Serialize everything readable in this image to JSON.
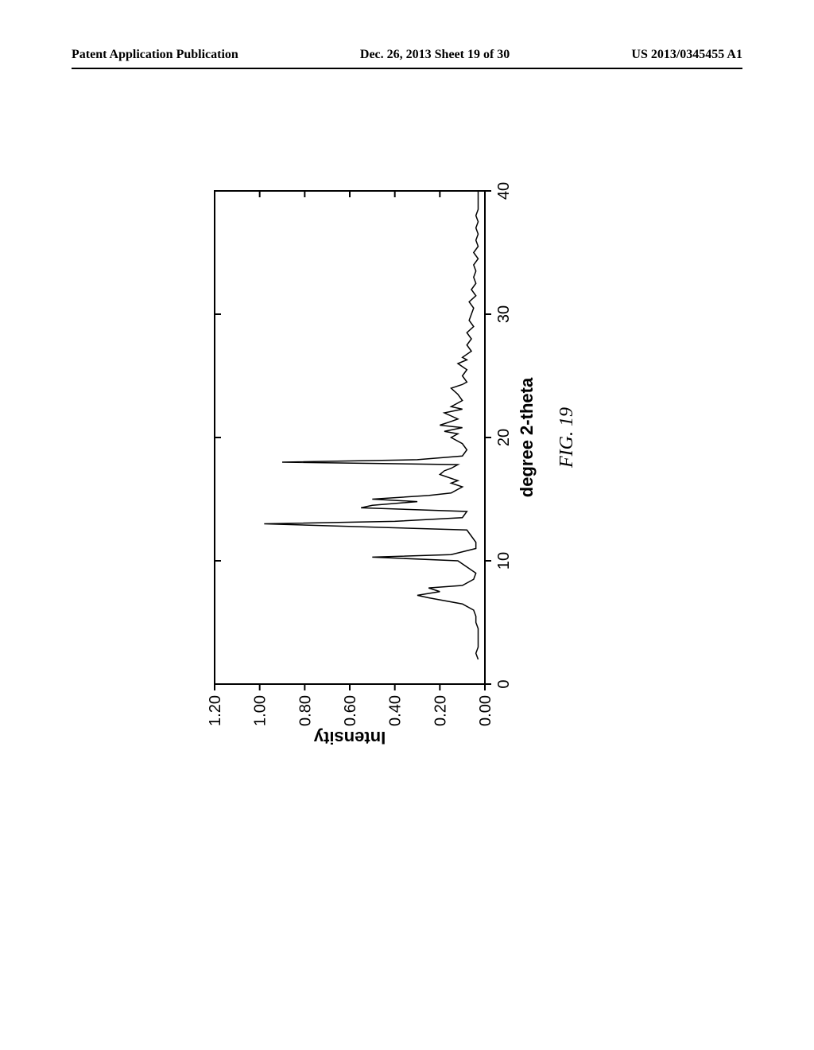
{
  "header": {
    "left": "Patent Application Publication",
    "center": "Dec. 26, 2013  Sheet 19 of 30",
    "right": "US 2013/0345455 A1"
  },
  "figure": {
    "caption": "FIG. 19",
    "caption_fontsize": 24,
    "chart": {
      "type": "line",
      "xlabel": "degree 2-theta",
      "ylabel": "Intensity",
      "label_fontsize": 22,
      "tick_fontsize": 20,
      "xlim": [
        0,
        40
      ],
      "ylim": [
        0.0,
        1.2
      ],
      "xticks": [
        0,
        10,
        20,
        30,
        40
      ],
      "yticks": [
        "0.00",
        "0.20",
        "0.40",
        "0.60",
        "0.80",
        "1.00",
        "1.20"
      ],
      "line_color": "#000000",
      "line_width": 1.5,
      "background_color": "#ffffff",
      "border_color": "#000000",
      "border_width": 2,
      "data_points": [
        [
          2.0,
          0.03
        ],
        [
          2.5,
          0.04
        ],
        [
          3.0,
          0.03
        ],
        [
          3.5,
          0.03
        ],
        [
          4.0,
          0.03
        ],
        [
          4.5,
          0.03
        ],
        [
          5.0,
          0.04
        ],
        [
          5.5,
          0.04
        ],
        [
          6.0,
          0.05
        ],
        [
          6.5,
          0.1
        ],
        [
          7.0,
          0.25
        ],
        [
          7.2,
          0.3
        ],
        [
          7.5,
          0.2
        ],
        [
          7.8,
          0.25
        ],
        [
          8.0,
          0.1
        ],
        [
          8.5,
          0.05
        ],
        [
          9.0,
          0.04
        ],
        [
          9.5,
          0.08
        ],
        [
          10.0,
          0.12
        ],
        [
          10.3,
          0.5
        ],
        [
          10.5,
          0.15
        ],
        [
          11.0,
          0.04
        ],
        [
          11.5,
          0.04
        ],
        [
          12.0,
          0.06
        ],
        [
          12.5,
          0.08
        ],
        [
          13.0,
          0.98
        ],
        [
          13.2,
          0.4
        ],
        [
          13.5,
          0.1
        ],
        [
          14.0,
          0.08
        ],
        [
          14.3,
          0.55
        ],
        [
          14.5,
          0.5
        ],
        [
          14.8,
          0.3
        ],
        [
          15.0,
          0.5
        ],
        [
          15.3,
          0.25
        ],
        [
          15.5,
          0.15
        ],
        [
          16.0,
          0.1
        ],
        [
          16.3,
          0.15
        ],
        [
          16.5,
          0.12
        ],
        [
          17.0,
          0.2
        ],
        [
          17.3,
          0.18
        ],
        [
          17.5,
          0.15
        ],
        [
          17.8,
          0.12
        ],
        [
          18.0,
          0.9
        ],
        [
          18.2,
          0.3
        ],
        [
          18.5,
          0.1
        ],
        [
          19.0,
          0.08
        ],
        [
          19.5,
          0.1
        ],
        [
          20.0,
          0.15
        ],
        [
          20.3,
          0.12
        ],
        [
          20.5,
          0.18
        ],
        [
          20.8,
          0.1
        ],
        [
          21.0,
          0.2
        ],
        [
          21.3,
          0.15
        ],
        [
          21.5,
          0.12
        ],
        [
          22.0,
          0.18
        ],
        [
          22.3,
          0.1
        ],
        [
          22.5,
          0.15
        ],
        [
          23.0,
          0.1
        ],
        [
          23.5,
          0.12
        ],
        [
          24.0,
          0.15
        ],
        [
          24.3,
          0.1
        ],
        [
          24.5,
          0.08
        ],
        [
          25.0,
          0.1
        ],
        [
          25.5,
          0.08
        ],
        [
          26.0,
          0.12
        ],
        [
          26.3,
          0.08
        ],
        [
          26.5,
          0.1
        ],
        [
          27.0,
          0.06
        ],
        [
          27.5,
          0.08
        ],
        [
          28.0,
          0.06
        ],
        [
          28.5,
          0.08
        ],
        [
          29.0,
          0.05
        ],
        [
          29.5,
          0.07
        ],
        [
          30.0,
          0.06
        ],
        [
          30.5,
          0.05
        ],
        [
          31.0,
          0.07
        ],
        [
          31.5,
          0.04
        ],
        [
          32.0,
          0.06
        ],
        [
          32.5,
          0.04
        ],
        [
          33.0,
          0.05
        ],
        [
          33.5,
          0.04
        ],
        [
          34.0,
          0.05
        ],
        [
          34.5,
          0.03
        ],
        [
          35.0,
          0.05
        ],
        [
          35.5,
          0.03
        ],
        [
          36.0,
          0.04
        ],
        [
          36.5,
          0.03
        ],
        [
          37.0,
          0.04
        ],
        [
          37.5,
          0.03
        ],
        [
          38.0,
          0.04
        ],
        [
          38.5,
          0.03
        ],
        [
          39.0,
          0.03
        ],
        [
          39.5,
          0.03
        ],
        [
          40.0,
          0.03
        ]
      ]
    }
  }
}
